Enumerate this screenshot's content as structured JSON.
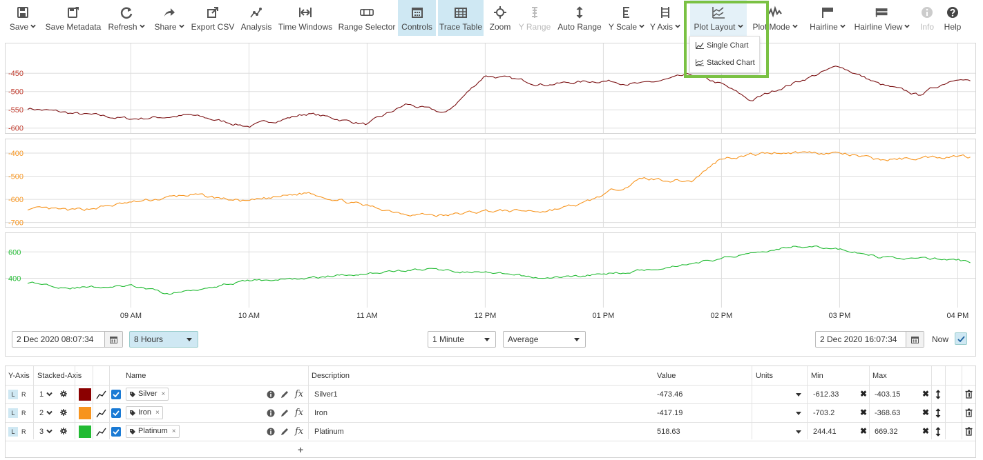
{
  "toolbar": {
    "items": [
      {
        "label": "Save",
        "icon": "save-icon",
        "caret": true
      },
      {
        "label": "Save Metadata",
        "icon": "save-metadata-icon",
        "caret": false
      },
      {
        "label": "Refresh",
        "icon": "refresh-icon",
        "caret": true
      },
      {
        "label": "Share",
        "icon": "share-icon",
        "caret": true
      },
      {
        "label": "Export CSV",
        "icon": "export-icon",
        "caret": false
      },
      {
        "label": "Analysis",
        "icon": "analysis-icon",
        "caret": false
      },
      {
        "label": "Time Windows",
        "icon": "time-windows-icon",
        "caret": false
      },
      {
        "label": "Range Selector",
        "icon": "range-selector-icon",
        "caret": false
      },
      {
        "label": "Controls",
        "icon": "calendar-icon",
        "caret": false,
        "active": true
      },
      {
        "label": "Trace Table",
        "icon": "table-icon",
        "caret": false,
        "active": true
      },
      {
        "label": "Zoom",
        "icon": "zoom-icon",
        "caret": false
      },
      {
        "label": "Y Range",
        "icon": "y-range-icon",
        "caret": false,
        "disabled": true
      },
      {
        "label": "Auto Range",
        "icon": "auto-range-icon",
        "caret": false
      },
      {
        "label": "Y Scale",
        "icon": "y-scale-icon",
        "caret": true
      },
      {
        "label": "Y Axis",
        "icon": "y-axis-icon",
        "caret": true
      },
      {
        "label": "Plot Layout",
        "icon": "plot-layout-icon",
        "caret": true,
        "active": true
      },
      {
        "label": "Plot Mode",
        "icon": "plot-mode-icon",
        "caret": true
      },
      {
        "label": "Hairline",
        "icon": "hairline-icon",
        "caret": true
      },
      {
        "label": "Hairline View",
        "icon": "hairline-view-icon",
        "caret": true
      },
      {
        "label": "Info",
        "icon": "info-icon",
        "caret": false,
        "disabled": true
      },
      {
        "label": "Help",
        "icon": "help-icon",
        "caret": false
      }
    ]
  },
  "plot_layout_menu": {
    "items": [
      "Single Chart",
      "Stacked Chart"
    ]
  },
  "chart_data": [
    {
      "type": "line",
      "series": [
        {
          "name": "Silver",
          "color": "#7b1113"
        }
      ],
      "y_ticks": [
        "-450",
        "-500",
        "-550",
        "-600"
      ],
      "ylim": [
        -610,
        -410
      ],
      "x": [
        "08:07",
        "08:30",
        "09:00",
        "09:30",
        "10:00",
        "10:30",
        "11:00",
        "11:20",
        "11:40",
        "12:00",
        "12:30",
        "13:00",
        "13:20",
        "13:45",
        "14:00",
        "14:15",
        "14:30",
        "15:00",
        "15:20",
        "15:40",
        "16:00",
        "16:07"
      ],
      "values": [
        -545,
        -560,
        -575,
        -565,
        -595,
        -560,
        -590,
        -535,
        -560,
        -455,
        -480,
        -470,
        -480,
        -455,
        -480,
        -525,
        -490,
        -430,
        -480,
        -510,
        -460,
        -473
      ]
    },
    {
      "type": "line",
      "series": [
        {
          "name": "Iron",
          "color": "#f7941d"
        }
      ],
      "y_ticks": [
        "-400",
        "-500",
        "-600",
        "-700"
      ],
      "ylim": [
        -710,
        -370
      ],
      "x": [
        "08:07",
        "08:30",
        "09:00",
        "09:30",
        "10:00",
        "10:30",
        "11:00",
        "11:20",
        "11:40",
        "12:00",
        "12:30",
        "12:50",
        "13:00",
        "13:20",
        "13:45",
        "14:00",
        "14:30",
        "15:00",
        "15:20",
        "15:40",
        "16:00",
        "16:07"
      ],
      "values": [
        -640,
        -650,
        -615,
        -580,
        -610,
        -570,
        -630,
        -660,
        -670,
        -650,
        -650,
        -620,
        -580,
        -510,
        -520,
        -420,
        -395,
        -400,
        -430,
        -420,
        -410,
        -417
      ]
    },
    {
      "type": "line",
      "series": [
        {
          "name": "Platinum",
          "color": "#22bb33"
        }
      ],
      "y_ticks": [
        "600",
        "400"
      ],
      "ylim": [
        240,
        680
      ],
      "x": [
        "08:07",
        "08:30",
        "09:00",
        "09:20",
        "09:45",
        "10:00",
        "10:30",
        "11:00",
        "11:30",
        "12:00",
        "12:30",
        "13:00",
        "13:30",
        "14:00",
        "14:20",
        "14:40",
        "15:00",
        "15:20",
        "16:00",
        "16:07"
      ],
      "values": [
        370,
        330,
        340,
        280,
        350,
        380,
        400,
        440,
        470,
        440,
        400,
        430,
        480,
        550,
        610,
        650,
        620,
        560,
        540,
        518
      ]
    },
    {
      "x_ticks": [
        "09 AM",
        "10 AM",
        "11 AM",
        "12 PM",
        "01 PM",
        "02 PM",
        "03 PM",
        "04 PM"
      ]
    }
  ],
  "controls": {
    "start": "2 Dec 2020 08:07:34",
    "duration": "8 Hours",
    "interval": "1 Minute",
    "aggregation": "Average",
    "end": "2 Dec 2020 16:07:34",
    "now_label": "Now"
  },
  "table": {
    "headers": {
      "yaxis": "Y-Axis",
      "stacked": "Stacked-Axis",
      "name": "Name",
      "description": "Description",
      "value": "Value",
      "units": "Units",
      "min": "Min",
      "max": "Max"
    },
    "rows": [
      {
        "axis": "1",
        "color": "#8b0000",
        "name": "Silver",
        "description": "Silver1",
        "value": "-473.46",
        "units": "",
        "min": "-612.33",
        "max": "-403.15"
      },
      {
        "axis": "2",
        "color": "#f7941d",
        "name": "Iron",
        "description": "Iron",
        "value": "-417.19",
        "units": "",
        "min": "-703.2",
        "max": "-368.63"
      },
      {
        "axis": "3",
        "color": "#22bb33",
        "name": "Platinum",
        "description": "Platinum",
        "value": "518.63",
        "units": "",
        "min": "244.41",
        "max": "669.32"
      }
    ],
    "lr": {
      "l": "L",
      "r": "R"
    }
  }
}
